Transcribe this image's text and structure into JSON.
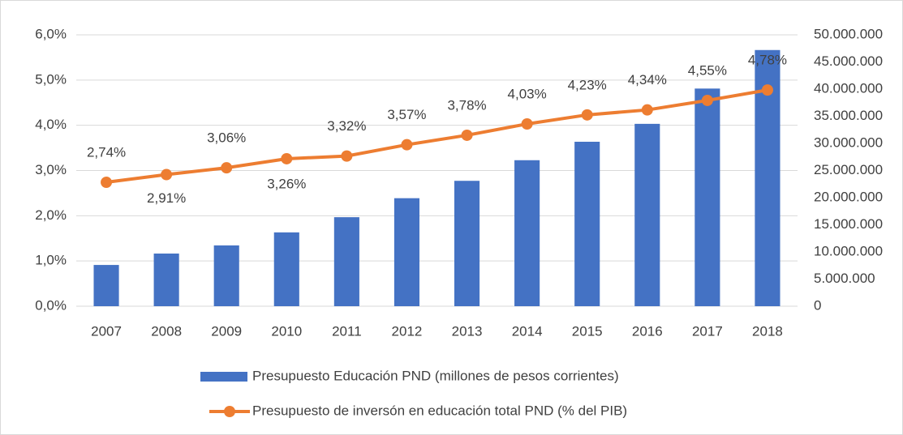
{
  "chart_data": {
    "type": "bar-line",
    "categories": [
      "2007",
      "2008",
      "2009",
      "2010",
      "2011",
      "2012",
      "2013",
      "2014",
      "2015",
      "2016",
      "2017",
      "2018"
    ],
    "series": [
      {
        "name": "Presupuesto Educación PND (millones de pesos corrientes)",
        "type": "bar",
        "color": "#4472c4",
        "axis": "y2",
        "values": [
          7600000,
          9700000,
          11200000,
          13600000,
          16400000,
          19900000,
          23100000,
          26900000,
          30300000,
          33600000,
          40100000,
          47200000
        ]
      },
      {
        "name": "Presupuesto de inversón en educación total PND (% del PIB)",
        "type": "line",
        "color": "#ed7d31",
        "axis": "y",
        "values": [
          2.74,
          2.91,
          3.06,
          3.26,
          3.32,
          3.57,
          3.78,
          4.03,
          4.23,
          4.34,
          4.55,
          4.78
        ],
        "value_labels": [
          "2,74%",
          "2,91%",
          "3,06%",
          "3,26%",
          "3,32%",
          "3,57%",
          "3,78%",
          "4,03%",
          "4,23%",
          "4,34%",
          "4,55%",
          "4,78%"
        ]
      }
    ],
    "ylim": [
      0,
      6
    ],
    "yticks": [
      {
        "value": 0,
        "label": "0,0%"
      },
      {
        "value": 1,
        "label": "1,0%"
      },
      {
        "value": 2,
        "label": "2,0%"
      },
      {
        "value": 3,
        "label": "3,0%"
      },
      {
        "value": 4,
        "label": "4,0%"
      },
      {
        "value": 5,
        "label": "5,0%"
      },
      {
        "value": 6,
        "label": "6,0%"
      }
    ],
    "y2lim": [
      0,
      50000000
    ],
    "y2ticks": [
      0,
      {
        "value": 5000000,
        "label": "5.000.000"
      },
      {
        "value": 10000000,
        "label": "10.000.000"
      },
      {
        "value": 15000000,
        "label": "15.000.000"
      },
      {
        "value": 20000000,
        "label": "20.000.000"
      },
      {
        "value": 25000000,
        "label": "25.000.000"
      },
      {
        "value": 30000000,
        "label": "30.000.000"
      },
      {
        "value": 35000000,
        "label": "35.000.000"
      },
      {
        "value": 40000000,
        "label": "40.000.000"
      },
      {
        "value": 45000000,
        "label": "45.000.000"
      },
      {
        "value": 50000000,
        "label": "50.000.000"
      }
    ],
    "grid": true,
    "legend": "bottom"
  }
}
